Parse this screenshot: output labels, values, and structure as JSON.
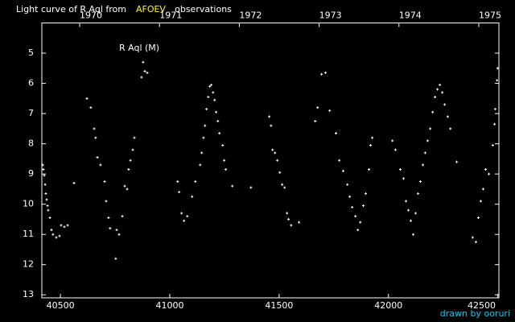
{
  "chart_data": {
    "type": "scatter",
    "title_parts": [
      {
        "text": "Light curve of R Aql from",
        "color": "#ffffff"
      },
      {
        "text": "AFOEV",
        "color": "#ffff00"
      },
      {
        "text": "observations",
        "color": "#ffffff"
      }
    ],
    "annotation": "R Aql (M)",
    "credit": "drawn by ooruri",
    "credit_color": "#00ccff",
    "color": "#ffffff",
    "xlim": [
      40415,
      42505
    ],
    "ylim": [
      13.1,
      4
    ],
    "xticks": [
      40500,
      41000,
      41500,
      42000,
      42500
    ],
    "yticks": [
      5,
      6,
      7,
      8,
      9,
      10,
      11,
      12,
      13
    ],
    "top_xticks": [
      {
        "value": 40588,
        "label": "1970"
      },
      {
        "value": 40953,
        "label": "1971"
      },
      {
        "value": 41318,
        "label": "1972"
      },
      {
        "value": 41683,
        "label": "1973"
      },
      {
        "value": 42048,
        "label": "1974"
      },
      {
        "value": 42413,
        "label": "1975"
      }
    ],
    "x": [
      40419,
      40422,
      40426,
      40430,
      40433,
      40437,
      40441,
      40444,
      40452,
      40459,
      40466,
      40481,
      40496,
      40503,
      40518,
      40533,
      40562,
      40621,
      40639,
      40654,
      40661,
      40669,
      40683,
      40702,
      40709,
      40720,
      40727,
      40757,
      40768,
      40753,
      40783,
      40794,
      40805,
      40812,
      40820,
      40831,
      40838,
      40871,
      40878,
      40886,
      40897,
      41036,
      41043,
      41054,
      41065,
      41080,
      41102,
      41117,
      41139,
      41146,
      41154,
      41161,
      41168,
      41176,
      41183,
      41190,
      41198,
      41205,
      41212,
      41220,
      41227,
      41242,
      41249,
      41256,
      41286,
      41371,
      41455,
      41463,
      41470,
      41481,
      41492,
      41503,
      41514,
      41525,
      41536,
      41543,
      41555,
      41591,
      41665,
      41676,
      41694,
      41712,
      41731,
      41760,
      41775,
      41793,
      41812,
      41823,
      41834,
      41849,
      41860,
      41871,
      41885,
      41896,
      41911,
      41918,
      41926,
      42018,
      42032,
      42054,
      42069,
      42080,
      42091,
      42102,
      42113,
      42124,
      42135,
      42146,
      42157,
      42168,
      42179,
      42191,
      42202,
      42213,
      42224,
      42235,
      42246,
      42257,
      42271,
      42283,
      42312,
      42385,
      42400,
      42411,
      42422,
      42433,
      42444,
      42459,
      42477,
      42485,
      42488,
      42496,
      42499
    ],
    "values": [
      8.7,
      8.85,
      9.05,
      9.35,
      9.65,
      9.85,
      10.05,
      10.2,
      10.45,
      10.85,
      11.0,
      11.1,
      11.05,
      10.7,
      10.75,
      10.7,
      9.3,
      6.5,
      6.8,
      7.5,
      7.8,
      8.45,
      8.7,
      9.25,
      9.9,
      10.45,
      10.8,
      10.85,
      11.0,
      11.8,
      10.4,
      9.4,
      9.5,
      8.85,
      8.55,
      8.2,
      7.8,
      5.8,
      5.3,
      5.6,
      5.65,
      9.25,
      9.6,
      10.3,
      10.55,
      10.4,
      9.75,
      9.25,
      8.7,
      8.3,
      7.8,
      7.4,
      6.85,
      6.45,
      6.1,
      6.05,
      6.3,
      6.55,
      6.95,
      7.25,
      7.65,
      8.05,
      8.55,
      8.85,
      9.4,
      9.45,
      7.1,
      7.4,
      8.2,
      8.3,
      8.55,
      8.95,
      9.35,
      9.45,
      10.3,
      10.5,
      10.7,
      10.6,
      7.25,
      6.8,
      5.7,
      5.65,
      6.9,
      7.65,
      8.55,
      8.9,
      9.35,
      9.75,
      10.1,
      10.4,
      10.85,
      10.6,
      10.05,
      9.65,
      8.85,
      8.05,
      7.8,
      7.9,
      8.2,
      8.85,
      9.15,
      9.9,
      10.2,
      10.55,
      11.0,
      10.3,
      9.65,
      9.25,
      8.7,
      8.3,
      7.9,
      7.5,
      6.95,
      6.45,
      6.2,
      6.05,
      6.3,
      6.7,
      7.1,
      7.5,
      8.6,
      11.1,
      11.25,
      10.45,
      9.9,
      9.5,
      8.85,
      9.0,
      8.05,
      7.35,
      6.85,
      5.9,
      5.5
    ]
  }
}
